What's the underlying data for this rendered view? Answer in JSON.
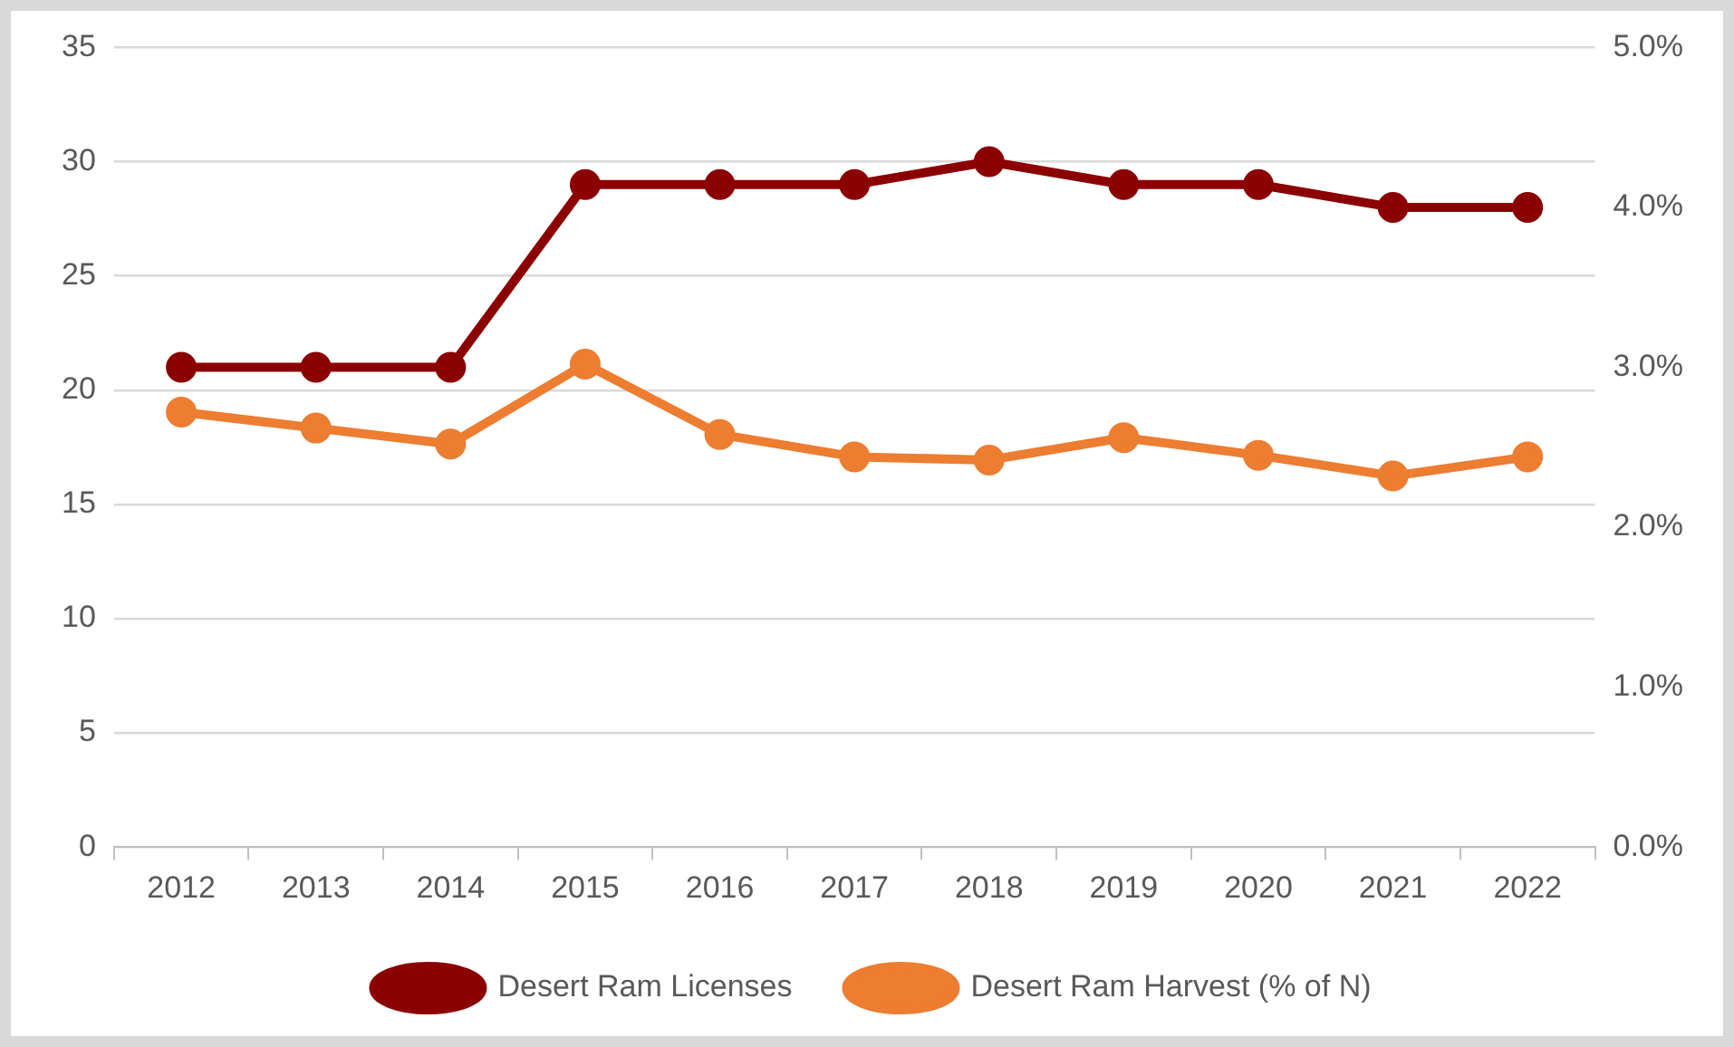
{
  "chart_data": {
    "type": "line",
    "categories": [
      "2012",
      "2013",
      "2014",
      "2015",
      "2016",
      "2017",
      "2018",
      "2019",
      "2020",
      "2021",
      "2022"
    ],
    "series": [
      {
        "name": "Desert Ram Licenses",
        "color": "#8b0000",
        "values": [
          21,
          21,
          21,
          29,
          29,
          29,
          30,
          29,
          29,
          28,
          28
        ]
      },
      {
        "name": "Desert Ram Harvest (% of N)",
        "color": "#ed7d31",
        "axis": "y2",
        "values": [
          2.72,
          2.62,
          2.52,
          3.02,
          2.58,
          2.44,
          2.42,
          2.56,
          2.45,
          2.32,
          2.44
        ]
      }
    ],
    "ylim": [
      0,
      35
    ],
    "yticks": [
      0,
      5,
      10,
      15,
      20,
      25,
      30,
      35
    ],
    "y2lim": [
      0,
      5
    ],
    "y2ticks": [
      {
        "value": 0,
        "label": "0.0%"
      },
      {
        "value": 1,
        "label": "1.0%"
      },
      {
        "value": 2,
        "label": "2.0%"
      },
      {
        "value": 3,
        "label": "3.0%"
      },
      {
        "value": 4,
        "label": "4.0%"
      },
      {
        "value": 5,
        "label": "5.0%"
      }
    ],
    "grid": "y",
    "legend": "bottom",
    "marker": "circle",
    "line_style": "solid"
  }
}
